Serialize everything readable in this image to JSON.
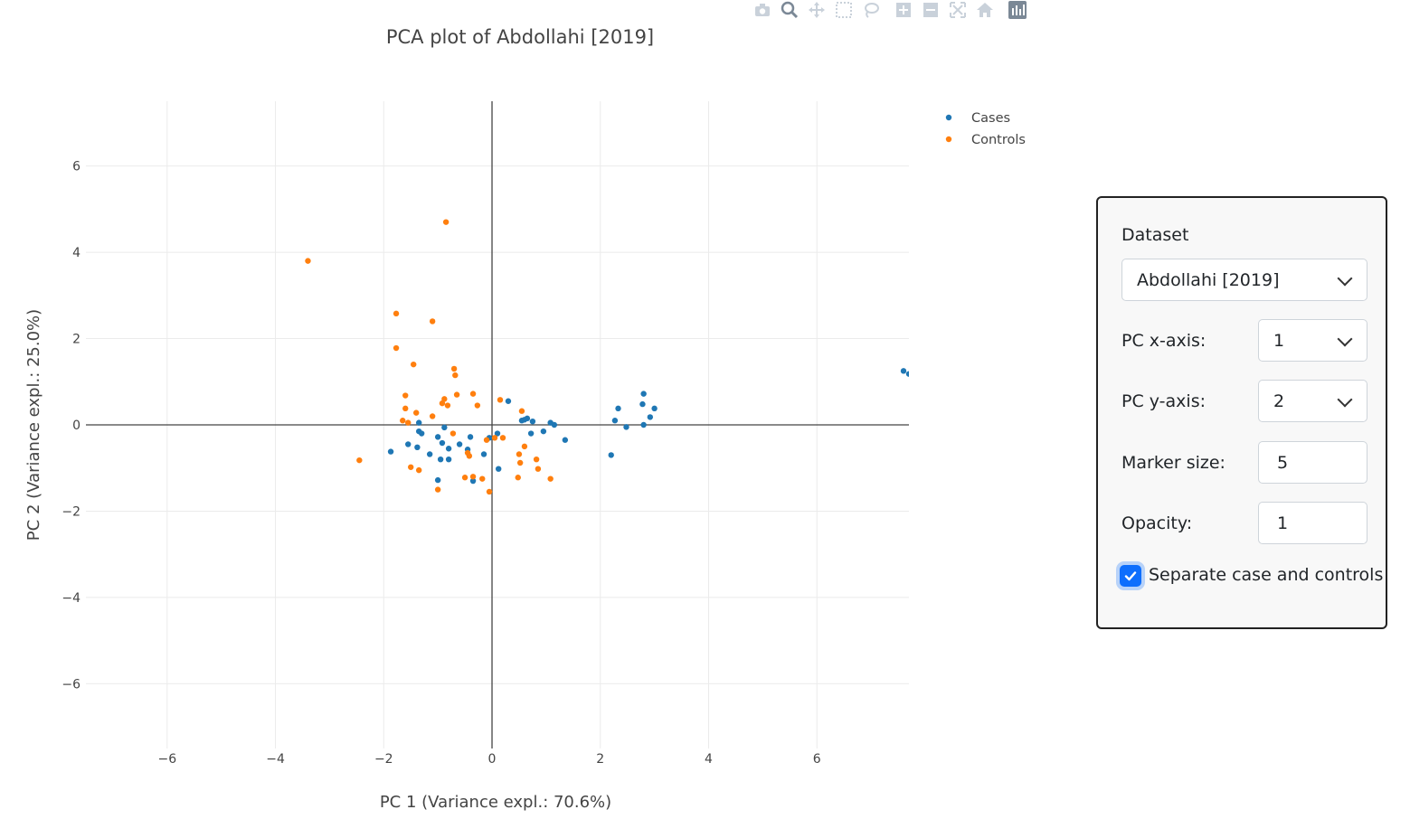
{
  "chart_data": {
    "type": "scatter",
    "title": "PCA plot of Abdollahi [2019]",
    "xlabel": "PC 1 (Variance expl.: 70.6%)",
    "ylabel": "PC 2 (Variance expl.: 25.0%)",
    "xlim": [
      -7.5,
      7.7
    ],
    "ylim": [
      -7.5,
      7.5
    ],
    "xticks": [
      -6,
      -4,
      -2,
      0,
      2,
      4,
      6
    ],
    "yticks": [
      -6,
      -4,
      -2,
      0,
      2,
      4,
      6
    ],
    "xtick_labels": [
      "−6",
      "−4",
      "−2",
      "0",
      "2",
      "4",
      "6"
    ],
    "ytick_labels": [
      "−6",
      "−4",
      "−2",
      "0",
      "2",
      "4",
      "6"
    ],
    "grid": true,
    "legend_position": "top-right",
    "series": [
      {
        "name": "Cases",
        "color": "#1f77b4",
        "points": [
          [
            -1.87,
            -0.62
          ],
          [
            -1.55,
            -0.45
          ],
          [
            -1.38,
            -0.52
          ],
          [
            -1.35,
            0.05
          ],
          [
            -1.35,
            -0.15
          ],
          [
            -1.3,
            -0.2
          ],
          [
            -1.15,
            -0.68
          ],
          [
            -1.0,
            -0.28
          ],
          [
            -1.0,
            -1.28
          ],
          [
            -0.95,
            -0.8
          ],
          [
            -0.92,
            -0.42
          ],
          [
            -0.88,
            -0.06
          ],
          [
            -0.8,
            -0.55
          ],
          [
            -0.8,
            -0.8
          ],
          [
            -0.6,
            -0.45
          ],
          [
            -0.45,
            -0.57
          ],
          [
            -0.4,
            -0.28
          ],
          [
            -0.35,
            -1.3
          ],
          [
            -0.15,
            -0.68
          ],
          [
            -0.05,
            -0.3
          ],
          [
            0.1,
            -0.2
          ],
          [
            0.12,
            -1.02
          ],
          [
            0.3,
            0.55
          ],
          [
            0.55,
            0.1
          ],
          [
            0.6,
            0.12
          ],
          [
            0.65,
            0.15
          ],
          [
            0.75,
            0.08
          ],
          [
            0.72,
            -0.2
          ],
          [
            0.95,
            -0.15
          ],
          [
            1.08,
            0.05
          ],
          [
            1.15,
            0.0
          ],
          [
            1.35,
            -0.35
          ],
          [
            2.2,
            -0.7
          ],
          [
            2.27,
            0.1
          ],
          [
            2.33,
            0.38
          ],
          [
            2.48,
            -0.05
          ],
          [
            2.78,
            0.48
          ],
          [
            2.8,
            0.72
          ],
          [
            2.8,
            0.0
          ],
          [
            2.92,
            0.18
          ],
          [
            3.0,
            0.38
          ],
          [
            7.6,
            1.25
          ],
          [
            7.7,
            1.18
          ]
        ]
      },
      {
        "name": "Controls",
        "color": "#ff7f0e",
        "points": [
          [
            -3.4,
            3.8
          ],
          [
            -2.45,
            -0.82
          ],
          [
            -1.77,
            2.58
          ],
          [
            -1.77,
            1.78
          ],
          [
            -1.65,
            0.1
          ],
          [
            -1.6,
            0.68
          ],
          [
            -1.6,
            0.38
          ],
          [
            -1.55,
            0.05
          ],
          [
            -1.5,
            -0.98
          ],
          [
            -1.45,
            1.4
          ],
          [
            -1.4,
            0.28
          ],
          [
            -1.35,
            -1.05
          ],
          [
            -1.1,
            2.4
          ],
          [
            -1.1,
            0.2
          ],
          [
            -1.0,
            -1.5
          ],
          [
            -0.92,
            0.5
          ],
          [
            -0.88,
            0.6
          ],
          [
            -0.85,
            4.7
          ],
          [
            -0.82,
            0.45
          ],
          [
            -0.72,
            -0.2
          ],
          [
            -0.7,
            1.3
          ],
          [
            -0.68,
            1.15
          ],
          [
            -0.65,
            0.7
          ],
          [
            -0.5,
            -1.22
          ],
          [
            -0.45,
            -0.65
          ],
          [
            -0.42,
            -0.72
          ],
          [
            -0.35,
            0.72
          ],
          [
            -0.35,
            -1.2
          ],
          [
            -0.27,
            0.45
          ],
          [
            -0.18,
            -1.25
          ],
          [
            -0.1,
            -0.35
          ],
          [
            -0.05,
            -1.55
          ],
          [
            0.05,
            -0.3
          ],
          [
            0.15,
            0.58
          ],
          [
            0.2,
            -0.3
          ],
          [
            0.48,
            -1.22
          ],
          [
            0.5,
            -0.68
          ],
          [
            0.52,
            -0.88
          ],
          [
            0.55,
            0.32
          ],
          [
            0.6,
            -0.5
          ],
          [
            0.82,
            -0.8
          ],
          [
            0.85,
            -1.02
          ],
          [
            1.08,
            -1.25
          ]
        ]
      }
    ]
  },
  "modebar": {
    "icons": [
      "camera-icon",
      "zoom-icon",
      "pan-icon",
      "box-select-icon",
      "lasso-select-icon",
      "zoom-in-icon",
      "zoom-out-icon",
      "autoscale-icon",
      "reset-axes-icon",
      "plotly-logo-icon"
    ]
  },
  "controls": {
    "dataset_label": "Dataset",
    "dataset_value": "Abdollahi [2019]",
    "pcx_label": "PC x-axis:",
    "pcx_value": "1",
    "pcy_label": "PC y-axis:",
    "pcy_value": "2",
    "marker_size_label": "Marker size:",
    "marker_size_value": "5",
    "opacity_label": "Opacity:",
    "opacity_value": "1",
    "separate_label": "Separate case and controls",
    "separate_checked": true
  }
}
